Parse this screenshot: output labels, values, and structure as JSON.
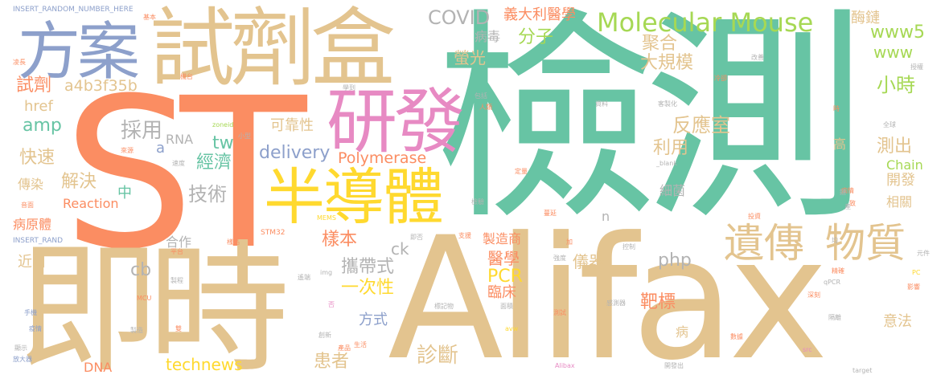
{
  "colors": {
    "tan": "#e3c48f",
    "green": "#67c4a4",
    "orange": "#fb8d62",
    "blue": "#8da0cb",
    "pink": "#e78ac3",
    "lime": "#a6d854",
    "yellow": "#ffd92f",
    "gray": "#b3b3b3"
  },
  "words": {
    "insert_random_top": "INSERT_RANDOM_NUMBER_HERE",
    "fang_an": "方案",
    "shi_ji_he": "試劑盒",
    "jian_ce": "檢測",
    "st": "ST",
    "ji_shi": "即時",
    "alifax": "Alifax",
    "yan_fa": "研發",
    "ban_dao_ti": "半導體",
    "yi_chuan": "遺傳",
    "wu_zhi": "物質",
    "molecular_mouse": "Molecular Mouse",
    "covid": "COVID",
    "yi_da_li": "義大利醫學",
    "www5": "www5",
    "www": "www",
    "mei_lian": "酶鏈",
    "fen_zi": "分子",
    "bing_du": "病毒",
    "ying_guang": "螢光",
    "ju_he": "聚合",
    "da_gui_mo": "大規模",
    "xiao_shi": "小時",
    "shi_ji": "試劑",
    "a4b3": "a4b3f35b",
    "amp": "amp",
    "href": "href",
    "cai_yong": "採用",
    "ke_kao_xing": "可靠性",
    "fan_ying_shi": "反應室",
    "li_yong": "利用",
    "ce_chu": "測出",
    "kuai_su": "快速",
    "a": "a",
    "rna": "RNA",
    "tw": "tw",
    "jing_ji": "經濟",
    "delivery": "delivery",
    "polymerase": "Polymerase",
    "chain": "Chain",
    "kai_fa": "開發",
    "chuan_ran": "傳染",
    "jie_jue": "解決",
    "zhong": "中",
    "ji_shu": "技術",
    "xi_jun": "細菌",
    "xiang_guan": "相關",
    "reaction": "Reaction",
    "bing_yuan_ti": "病原體",
    "n": "n",
    "yang_ben": "樣本",
    "zhi_zao_shang": "製造商",
    "he_zuo": "合作",
    "insert_rand": "INSERT_RAND",
    "jin_ri": "近日",
    "cb": "cb",
    "ck": "ck",
    "php": "php",
    "xie_dai_shi": "攜帶式",
    "yi_xue": "醫學",
    "pcr": "PCR",
    "yi_qi": "儀器",
    "yi_ci_xing": "一次性",
    "lin_chuang": "臨床",
    "ba_biao": "靶標",
    "fang_shi": "方式",
    "bing": "病",
    "yi_fa": "意法",
    "zhen_duan": "診斷",
    "huan_zhe": "患者",
    "dna": "DNA",
    "technews": "technews",
    "gao": "高",
    "stm32": "STM32",
    "mems": "MEMS",
    "mcu": "MCU",
    "alibax": "Alibax",
    "target": "target",
    "blank": "_blank",
    "qpcr": "qPCR",
    "src": "src",
    "zoneid": "zoneid",
    "img": "img",
    "avw": "avw",
    "pc": "PC",
    "ji_ben": "基本",
    "shuang": "雙",
    "gai_jin": "改善",
    "shou_quan": "授權",
    "ling_chang": "凌長",
    "xue_dao": "學到",
    "leng_que": "冷卻",
    "bao_kuo": "包括",
    "ren_lei": "人類",
    "zi_liao": "資料",
    "ke_zhi_hua": "客製化",
    "shi": "時",
    "quan_qiu": "全球",
    "lai_yuan": "來源",
    "xiao_xing": "小型",
    "su_du": "速度",
    "ding_liang": "定量",
    "jian_yan": "檢驗",
    "bing_qing": "病情",
    "yin_mian": "音面",
    "mian_ji": "面積",
    "tou_zi": "投資",
    "man_yan": "蔓延",
    "ji_tai": "機台",
    "biao_pin": "樣品",
    "ji_fou": "即否",
    "zhi_yuan": "支援",
    "jia": "加",
    "jun": "均",
    "ping_tai": "平台",
    "kong_zhi": "控制",
    "qiang_du": "強度",
    "yuan_jian": "元件",
    "jing_que": "精確",
    "zhi_cheng": "製程",
    "yao_duan": "遙端",
    "shen_zhi": "深刻",
    "ying_xiang": "影響",
    "shou_ji": "手機",
    "fou": "否",
    "biao_ji_wu": "標記物",
    "mian_jing": "面積",
    "ce_shi": "測試",
    "gan_ce_qi": "感測器",
    "ge_li": "隔離",
    "yi_qing": "疫情",
    "zhi_zao": "製造",
    "xian_shi": "顯示",
    "fang_da_qi": "放大器",
    "chuang_xin": "創新",
    "chan_pin": "產品",
    "sheng_huo": "生活",
    "shu_ju": "數據",
    "kai_fa_chu": "開發出",
    "zhi": "致",
    "lian": "鏈",
    "chan": "產"
  }
}
